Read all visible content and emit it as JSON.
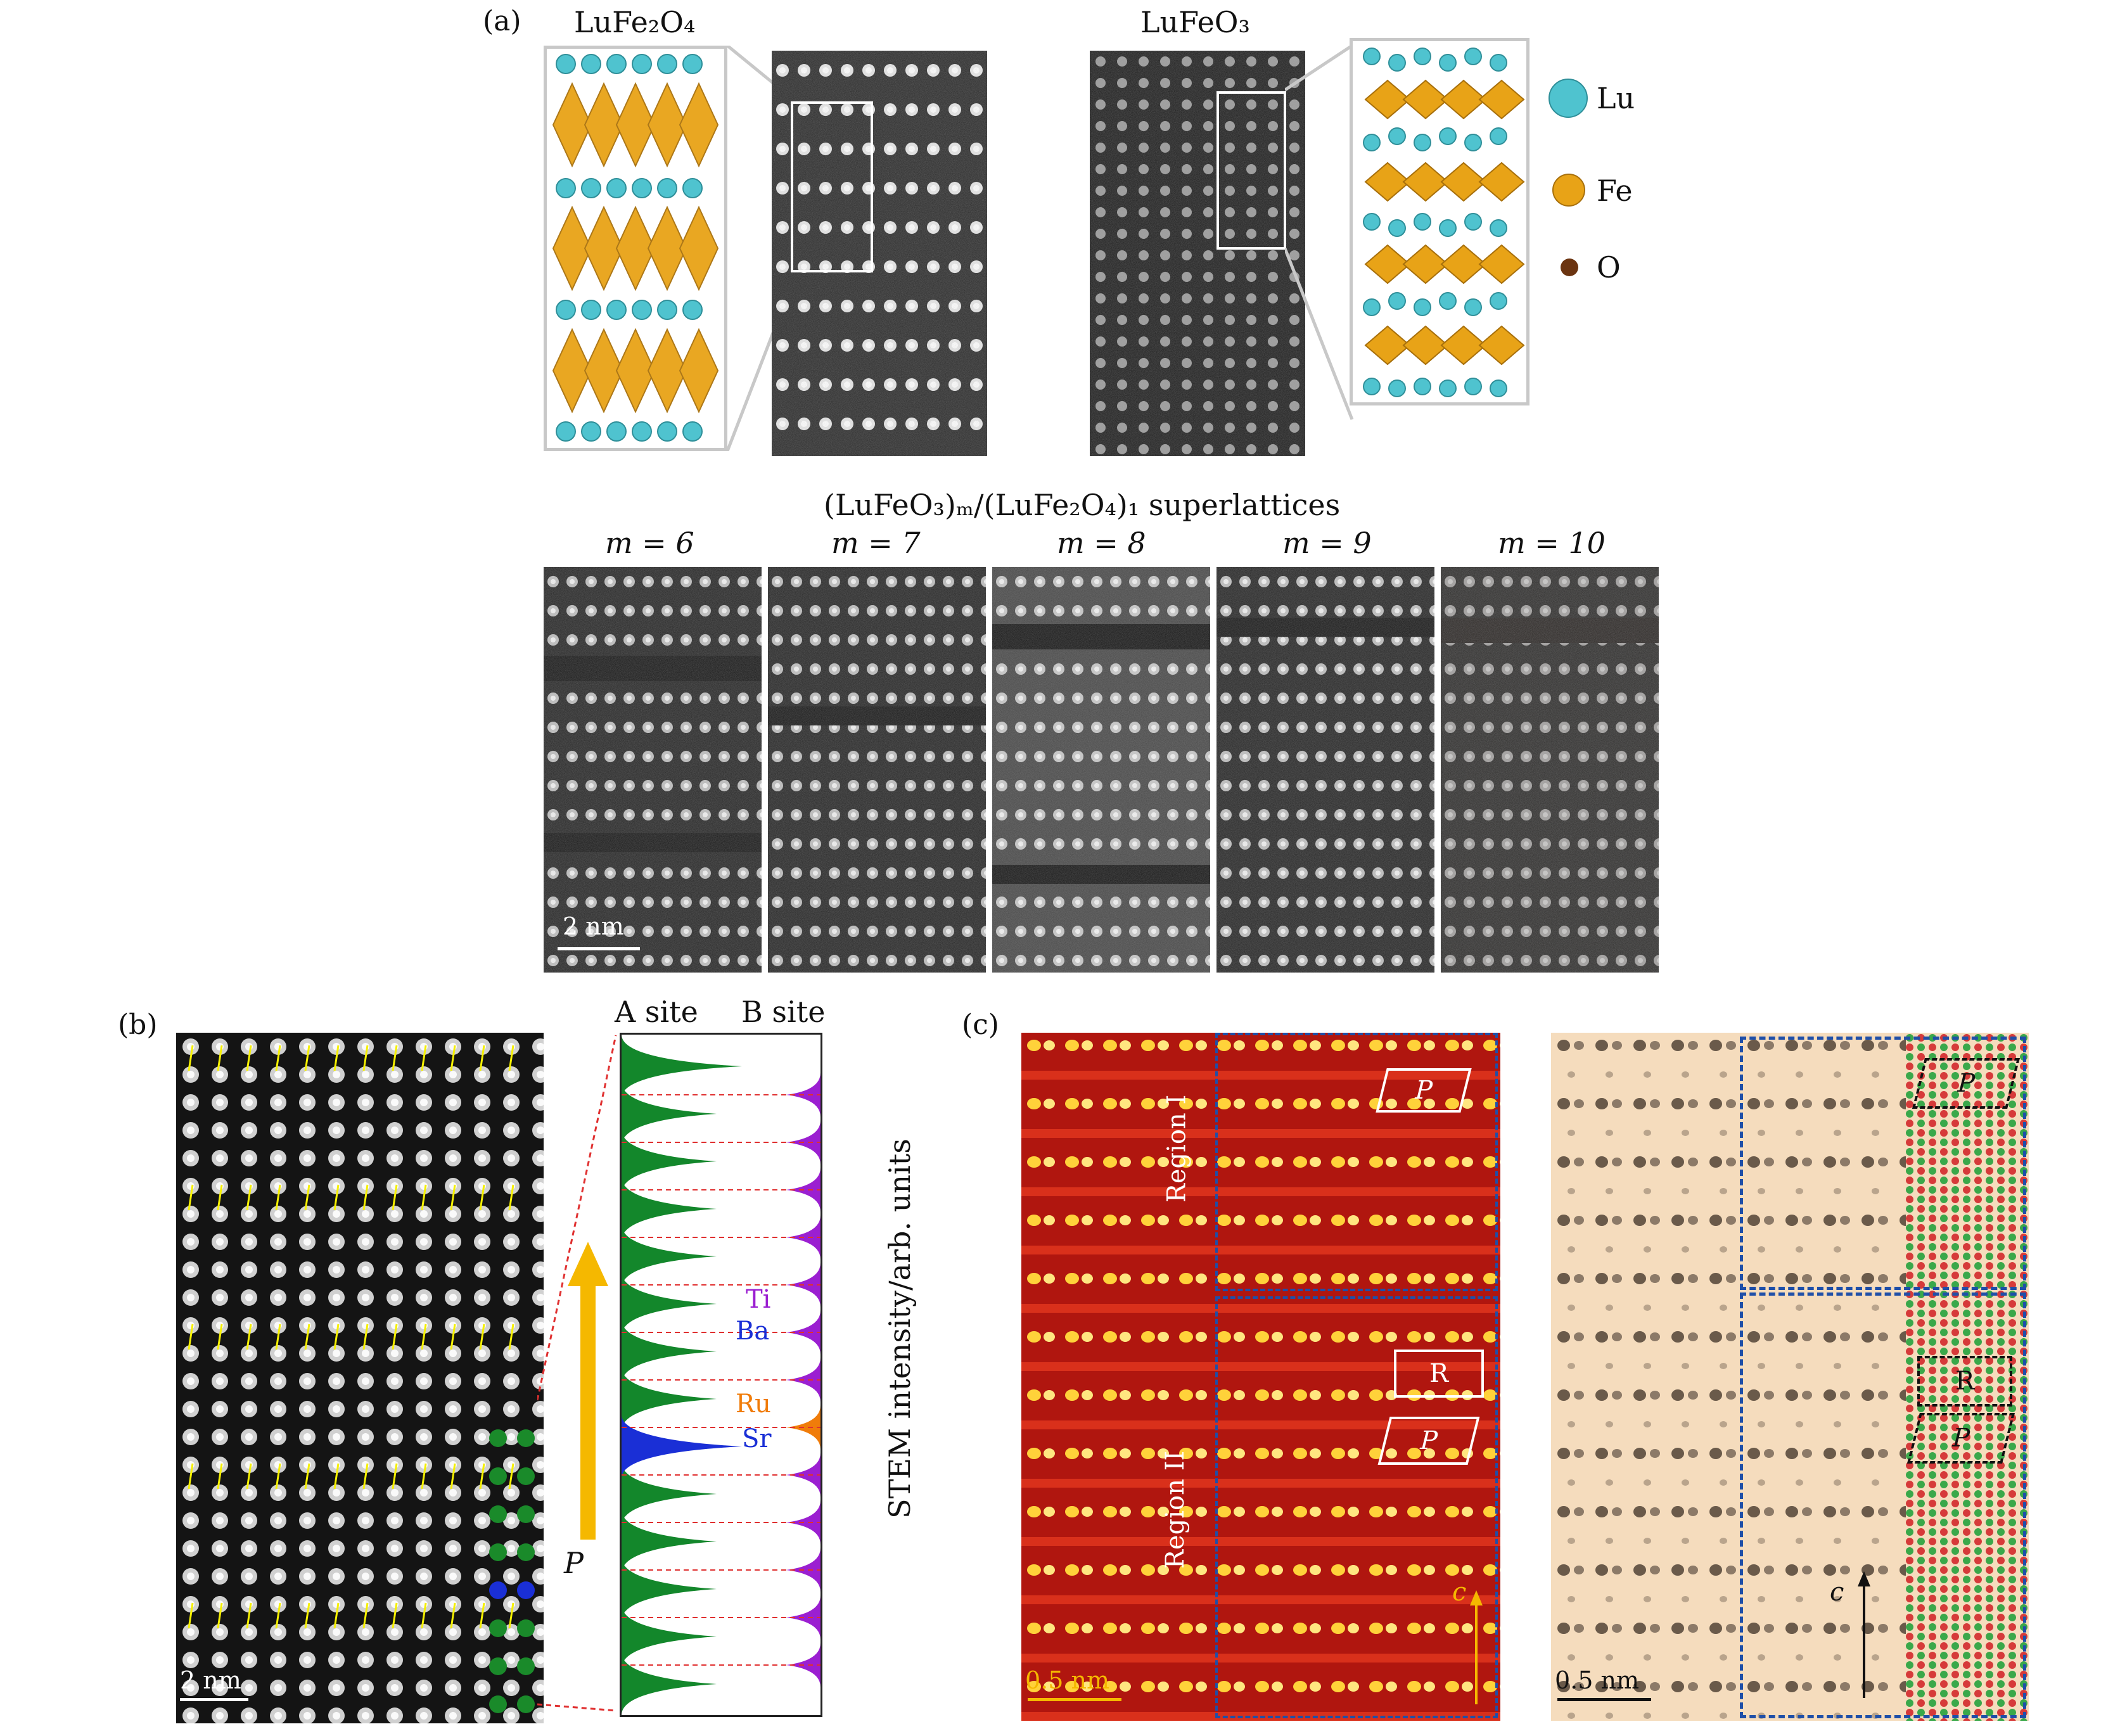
{
  "panel_a": {
    "label": "(a)",
    "lufe2o4_title": "LuFe₂O₄",
    "lufeo3_title": "LuFeO₃",
    "legend": [
      {
        "name": "Lu",
        "color": "#4fc3cf"
      },
      {
        "name": "Fe",
        "color": "#e8a317"
      },
      {
        "name": "O",
        "color": "#6b3410"
      }
    ],
    "superlattice_title": "(LuFeO₃)ₘ/(LuFe₂O₄)₁ superlattices",
    "m_labels": [
      "m = 6",
      "m = 7",
      "m = 8",
      "m = 9",
      "m = 10"
    ],
    "scale_bar": "2 nm"
  },
  "panel_b": {
    "label": "(b)",
    "a_site": "A site",
    "b_site": "B site",
    "elements": [
      "Ti",
      "Ba",
      "Ru",
      "Sr"
    ],
    "element_colors": {
      "Ti": "#9b1fd1",
      "Ba": "#1a2fd6",
      "Ru": "#f07c0a",
      "Sr": "#1a2fd6"
    },
    "polarization": "P",
    "y_axis": "STEM intensity/arb. units",
    "scale_bar": "2 nm"
  },
  "panel_c": {
    "label": "(c)",
    "region1": "Region I",
    "region2": "Region II",
    "box_p": "P",
    "box_r": "R",
    "axis_c": "c",
    "scale_bar_left": "0.5 nm",
    "scale_bar_right": "0.5 nm"
  }
}
